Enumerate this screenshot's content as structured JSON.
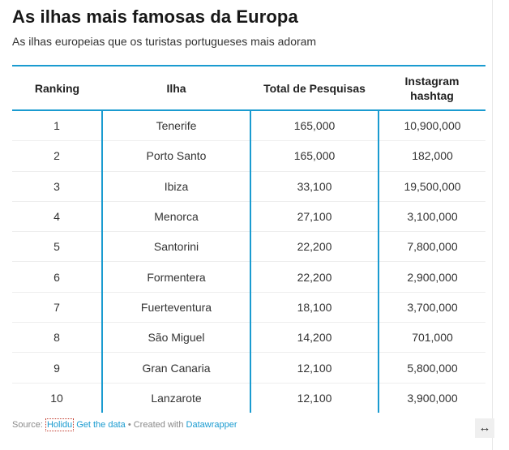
{
  "title": "As ilhas mais famosas da Europa",
  "subtitle": "As ilhas europeias que os turistas portugueses mais adoram",
  "chart_data": {
    "type": "table",
    "columns": [
      "Ranking",
      "Ilha",
      "Total de Pesquisas",
      "Instagram hashtag"
    ],
    "rows": [
      [
        "1",
        "Tenerife",
        "165,000",
        "10,900,000"
      ],
      [
        "2",
        "Porto Santo",
        "165,000",
        "182,000"
      ],
      [
        "3",
        "Ibiza",
        "33,100",
        "19,500,000"
      ],
      [
        "4",
        "Menorca",
        "27,100",
        "3,100,000"
      ],
      [
        "5",
        "Santorini",
        "22,200",
        "7,800,000"
      ],
      [
        "6",
        "Formentera",
        "22,200",
        "2,900,000"
      ],
      [
        "7",
        "Fuerteventura",
        "18,100",
        "3,700,000"
      ],
      [
        "8",
        "São Miguel",
        "14,200",
        "701,000"
      ],
      [
        "9",
        "Gran Canaria",
        "12,100",
        "5,800,000"
      ],
      [
        "10",
        "Lanzarote",
        "12,100",
        "3,900,000"
      ]
    ]
  },
  "footer": {
    "source_label": "Source: ",
    "source_name": "Holidu",
    "get_data": "Get the data",
    "created_with": " • Created with ",
    "tool_name": "Datawrapper"
  },
  "resize_glyph": "↔",
  "colors": {
    "accent": "#1a9bd0",
    "row_divider": "#eeeeee"
  }
}
